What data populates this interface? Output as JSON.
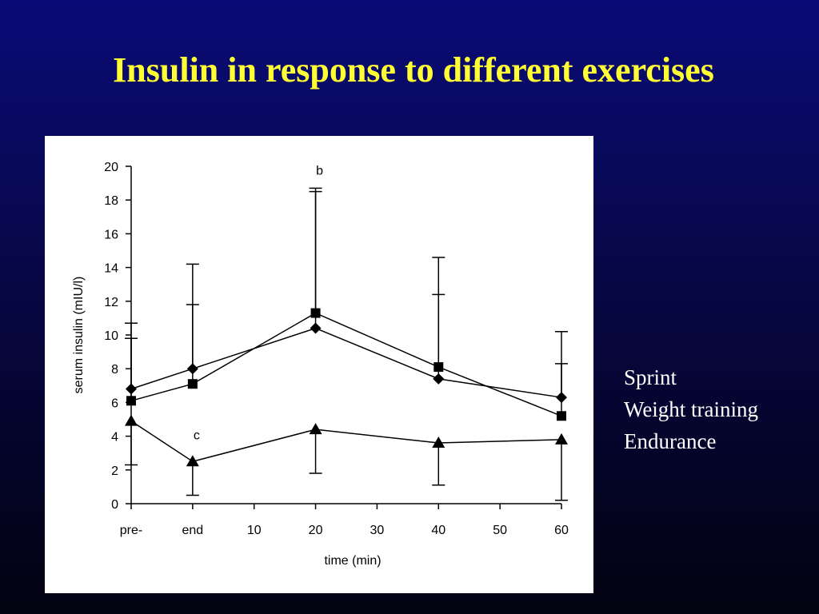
{
  "slide": {
    "title": "Insulin in response to different exercises"
  },
  "legend": {
    "items": [
      "Sprint",
      "Weight training",
      "Endurance"
    ]
  },
  "chart_data": {
    "type": "line",
    "title": "",
    "xlabel": "time (min)",
    "ylabel": "serum insulin (mIU/l)",
    "ylim": [
      0,
      20
    ],
    "y_ticks": [
      0,
      2,
      4,
      6,
      8,
      10,
      12,
      14,
      16,
      18,
      20
    ],
    "x_ticks": [
      {
        "label": "pre-",
        "x": -10
      },
      {
        "label": "end",
        "x": 0
      },
      {
        "label": "10",
        "x": 10
      },
      {
        "label": "20",
        "x": 20
      },
      {
        "label": "30",
        "x": 30
      },
      {
        "label": "40",
        "x": 40
      },
      {
        "label": "50",
        "x": 50
      },
      {
        "label": "60",
        "x": 60
      }
    ],
    "xlim": [
      -10,
      60
    ],
    "grid": false,
    "legend_position": "right",
    "series": [
      {
        "name": "Sprint",
        "marker": "diamond",
        "x": [
          -10,
          0,
          20,
          40,
          60
        ],
        "values": [
          6.8,
          8.0,
          10.4,
          7.4,
          6.3
        ],
        "error_upper": [
          10.7,
          14.2,
          18.7,
          14.6,
          10.2
        ]
      },
      {
        "name": "Weight training",
        "marker": "square",
        "x": [
          -10,
          0,
          20,
          40,
          60
        ],
        "values": [
          6.1,
          7.1,
          11.3,
          8.1,
          5.2
        ],
        "error_upper": [
          9.8,
          11.8,
          18.5,
          12.4,
          8.3
        ]
      },
      {
        "name": "Endurance",
        "marker": "triangle",
        "x": [
          -10,
          0,
          20,
          40,
          60
        ],
        "values": [
          4.9,
          2.5,
          4.4,
          3.6,
          3.8
        ],
        "error_lower": [
          2.3,
          0.5,
          1.8,
          1.1,
          0.2
        ]
      }
    ],
    "annotations": [
      {
        "text": "b",
        "x": 20,
        "y": 19.7
      },
      {
        "text": "c",
        "x": 0,
        "y": 4.0
      }
    ]
  }
}
